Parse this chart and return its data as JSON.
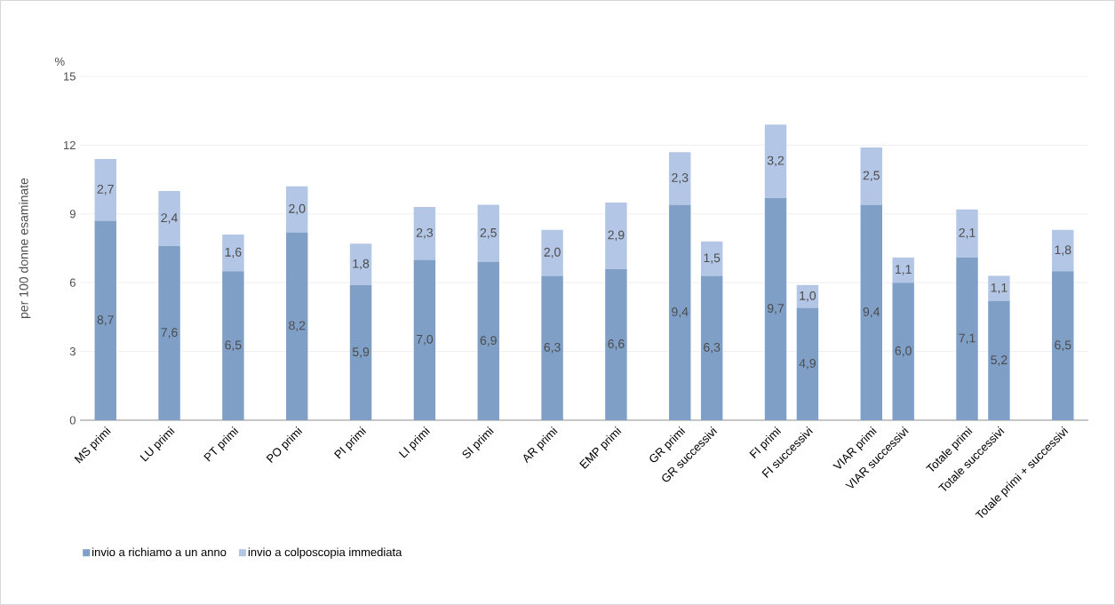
{
  "chart_data": {
    "type": "bar",
    "stacked": true,
    "ylabel": "per 100 donne esaminate",
    "annotations": [
      "%"
    ],
    "categories": [
      "MS primi",
      null,
      "LU primi",
      null,
      "PT primi",
      null,
      "PO primi",
      null,
      "PI primi",
      null,
      "LI primi",
      null,
      "SI primi",
      null,
      "AR primi",
      null,
      "EMP primi",
      null,
      "GR primi",
      "GR successivi",
      null,
      "FI primi",
      "FI successivi",
      null,
      "VIAR  primi",
      "VIAR successivi",
      null,
      "Totale primi",
      "Totale successivi",
      null,
      "Totale primi + successivi"
    ],
    "series": [
      {
        "name": "invio a richiamo a un anno",
        "color": "#7f9fc7",
        "values": [
          8.7,
          null,
          7.6,
          null,
          6.5,
          null,
          8.2,
          null,
          5.9,
          null,
          7.0,
          null,
          6.9,
          null,
          6.3,
          null,
          6.6,
          null,
          9.4,
          6.3,
          null,
          9.7,
          4.9,
          null,
          9.4,
          6.0,
          null,
          7.1,
          5.2,
          null,
          6.5
        ],
        "value_labels": [
          "8,7",
          null,
          "7,6",
          null,
          "6,5",
          null,
          "8,2",
          null,
          "5,9",
          null,
          "7,0",
          null,
          "6,9",
          null,
          "6,3",
          null,
          "6,6",
          null,
          "9,4",
          "6,3",
          null,
          "9,7",
          "4,9",
          null,
          "9,4",
          "6,0",
          null,
          "7,1",
          "5,2",
          null,
          "6,5"
        ]
      },
      {
        "name": "invio a colposcopia immediata",
        "color": "#b4c6e6",
        "values": [
          2.7,
          null,
          2.4,
          null,
          1.6,
          null,
          2.0,
          null,
          1.8,
          null,
          2.3,
          null,
          2.5,
          null,
          2.0,
          null,
          2.9,
          null,
          2.3,
          1.5,
          null,
          3.2,
          1.0,
          null,
          2.5,
          1.1,
          null,
          2.1,
          1.1,
          null,
          1.8
        ],
        "value_labels": [
          "2,7",
          null,
          "2,4",
          null,
          "1,6",
          null,
          "2,0",
          null,
          "1,8",
          null,
          "2,3",
          null,
          "2,5",
          null,
          "2,0",
          null,
          "2,9",
          null,
          "2,3",
          "1,5",
          null,
          "3,2",
          "1,0",
          null,
          "2,5",
          "1,1",
          null,
          "2,1",
          "1,1",
          null,
          "1,8"
        ]
      }
    ],
    "ylim": [
      0,
      15
    ],
    "yticks": [
      0,
      3,
      6,
      9,
      12,
      15
    ],
    "grid": "y",
    "legend": "bottom left"
  }
}
